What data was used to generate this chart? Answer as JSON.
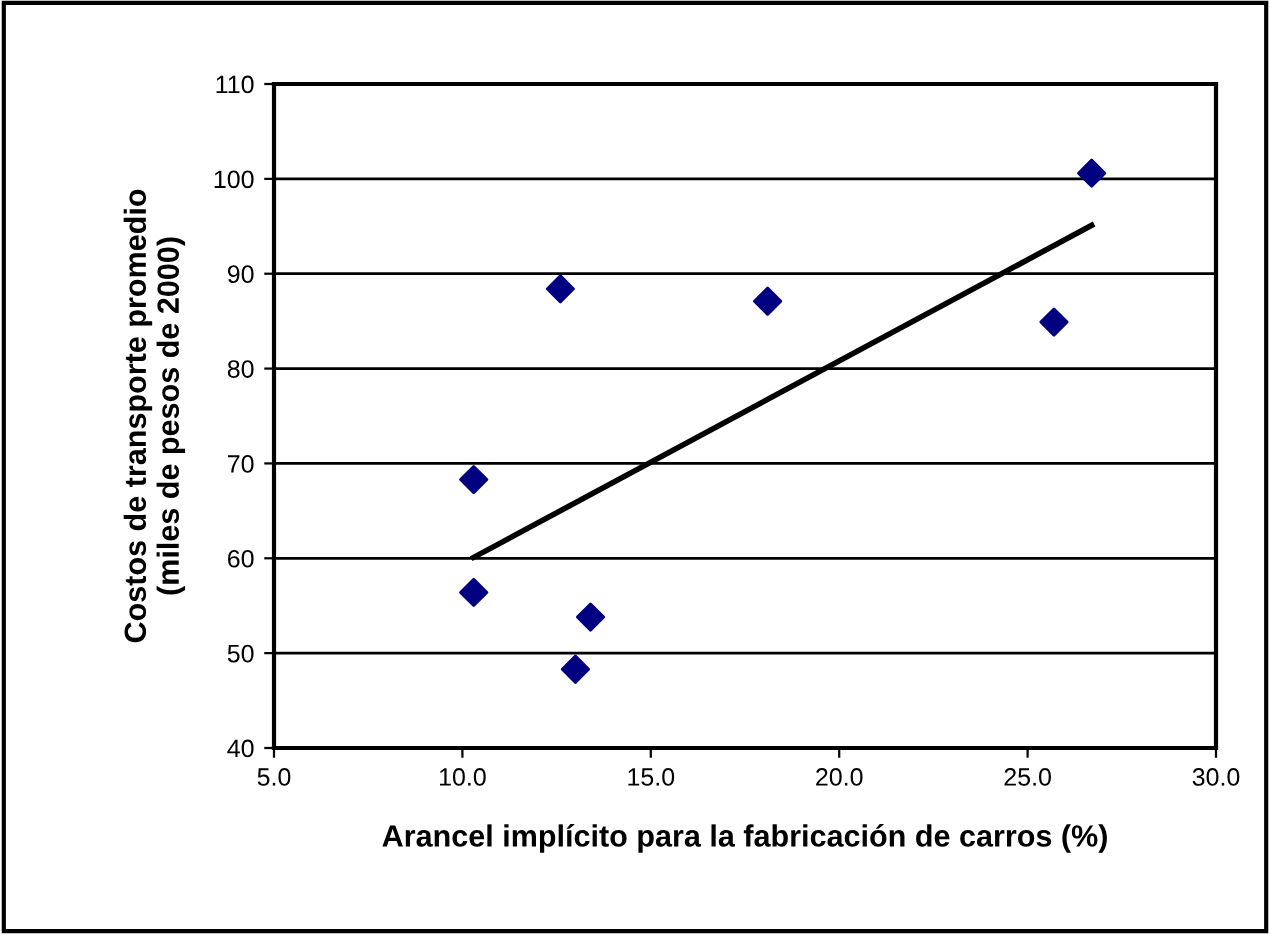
{
  "chart_data": {
    "type": "scatter",
    "xlabel": "Arancel implícito para la fabricación de carros (%)",
    "ylabel": "Costos de transporte promedio\n(miles de pesos de 2000)",
    "series": [
      {
        "color": "#000080",
        "marker": "diamond",
        "x": [
          10.3,
          10.3,
          12.6,
          13.0,
          13.4,
          18.1,
          25.7,
          26.7
        ],
        "values": [
          68.3,
          56.4,
          88.4,
          48.3,
          53.8,
          87.1,
          84.9,
          100.6
        ]
      },
      {
        "type": "line",
        "color": "#000000",
        "marker": "none",
        "x": [
          10.3,
          26.7
        ],
        "values": [
          60.1,
          95.1
        ]
      }
    ],
    "xlim": [
      5,
      30
    ],
    "xticks": [
      {
        "value": 5,
        "label": "5.0"
      },
      {
        "value": 10,
        "label": "10.0"
      },
      {
        "value": 15,
        "label": "15.0"
      },
      {
        "value": 20,
        "label": "20.0"
      },
      {
        "value": 25,
        "label": "25.0"
      },
      {
        "value": 30,
        "label": "30.0"
      }
    ],
    "ylim": [
      40,
      110
    ],
    "yticks": [
      40,
      50,
      60,
      70,
      80,
      90,
      100,
      110
    ],
    "grid": "y",
    "legend": false
  }
}
